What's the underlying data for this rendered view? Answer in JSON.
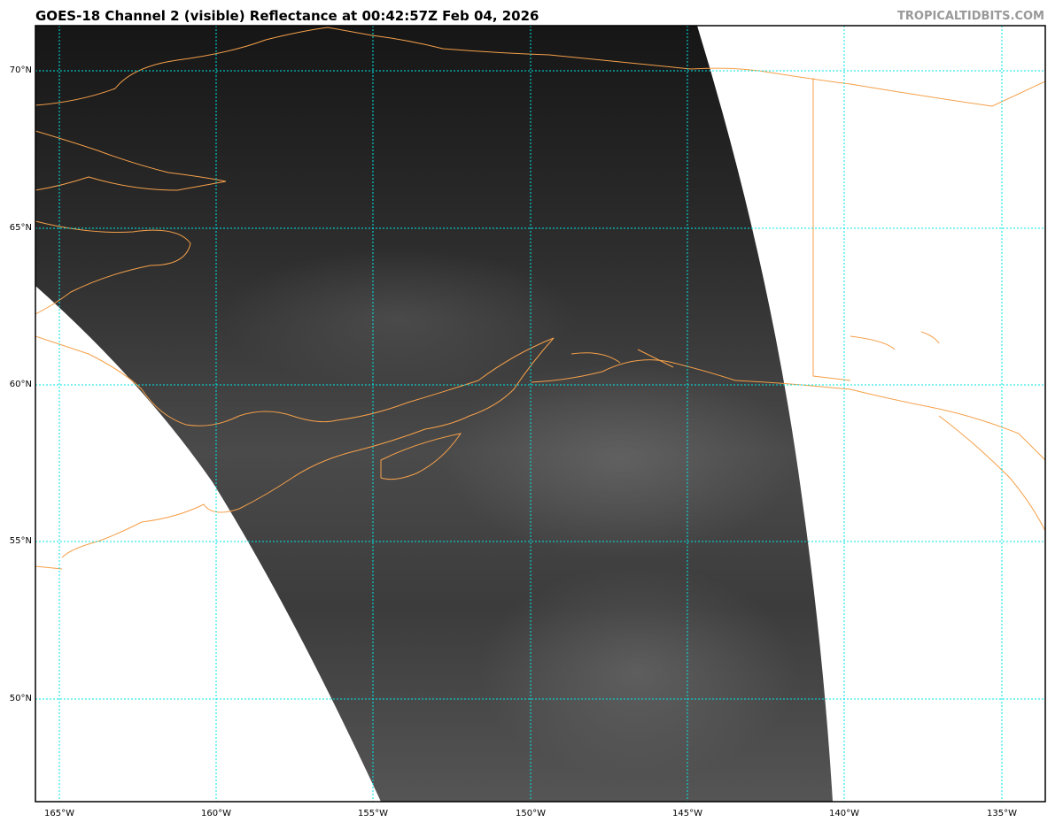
{
  "title": "GOES-18 Channel 2 (visible) Reflectance at 00:42:57Z Feb 04, 2026",
  "watermark": "TROPICALTIDBITS.COM",
  "map": {
    "lat_labels": [
      "70°N",
      "65°N",
      "60°N",
      "55°N",
      "50°N"
    ],
    "lon_labels": [
      "165°W",
      "160°W",
      "155°W",
      "150°W",
      "145°W",
      "140°W",
      "135°W"
    ],
    "colors": {
      "gridline": "#00e5e5",
      "coastline": "#f5a04a",
      "background": "#ffffff",
      "imagery_dark": "#1a1a1a",
      "imagery_light": "#6a6a6a"
    },
    "gridlines": "dotted",
    "imagery": "visible satellite reflectance, grayscale"
  }
}
